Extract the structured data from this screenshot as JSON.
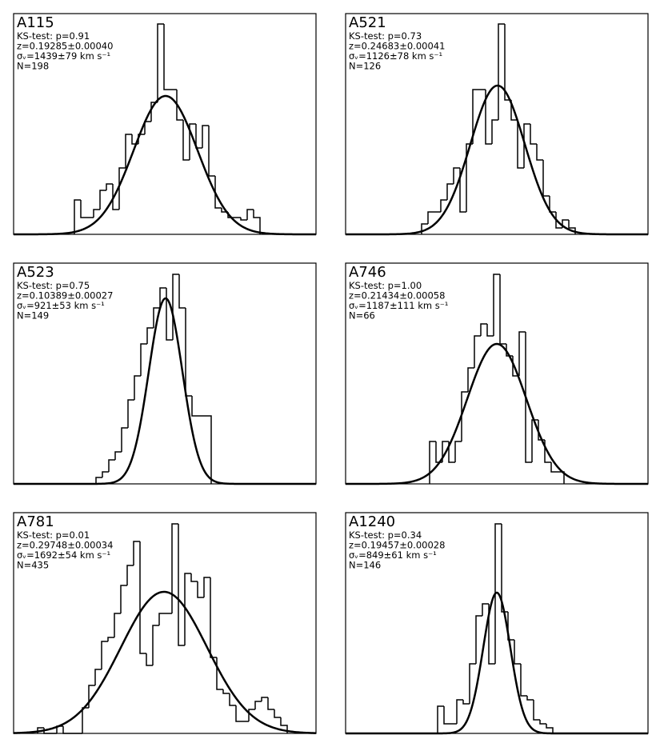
{
  "chart_data": [
    {
      "type": "histogram",
      "title": "A115",
      "annotations": [
        "KS-test: p=0.91",
        "z=0.19285±0.00040",
        "σᵥ=1439±79 km s⁻¹",
        "N=198"
      ],
      "bins": [
        76,
        84,
        92,
        100,
        108,
        116,
        124,
        132,
        140,
        148,
        156,
        164,
        172,
        180,
        188,
        196,
        204,
        212,
        220,
        228,
        236,
        244,
        252,
        260,
        268,
        276,
        284,
        292,
        300,
        308
      ],
      "values": [
        43,
        21,
        21,
        31,
        55,
        63,
        31,
        83,
        125,
        113,
        125,
        141,
        165,
        263,
        181,
        181,
        143,
        93,
        138,
        108,
        136,
        73,
        33,
        28,
        21,
        21,
        18,
        31,
        21
      ],
      "fit": {
        "mean": 190,
        "sigma": 40,
        "peak": 173
      },
      "color": "#000000",
      "xlim": [
        0,
        378
      ],
      "ylim": [
        0,
        276
      ]
    },
    {
      "type": "histogram",
      "title": "A521",
      "annotations": [
        "KS-test: p=0.73",
        "z=0.24683±0.00041",
        "σᵥ=1126±78 km s⁻¹",
        "N=126"
      ],
      "bins": [
        95,
        103,
        111,
        119,
        127,
        135,
        143,
        151,
        159,
        167,
        175,
        183,
        191,
        199,
        207,
        215,
        223,
        231,
        239,
        247,
        255,
        263,
        271,
        279,
        287
      ],
      "values": [
        13,
        28,
        28,
        43,
        63,
        83,
        28,
        113,
        181,
        181,
        113,
        143,
        263,
        168,
        143,
        83,
        138,
        113,
        93,
        48,
        28,
        8,
        18,
        8
      ],
      "fit": {
        "mean": 190,
        "sigma": 34,
        "peak": 186
      },
      "color": "#000000",
      "xlim": [
        0,
        378
      ],
      "ylim": [
        0,
        276
      ]
    },
    {
      "type": "histogram",
      "title": "A523",
      "annotations": [
        "KS-test: p=0.75",
        "z=0.10389±0.00027",
        "σᵥ=921±53 km s⁻¹",
        "N=149"
      ],
      "bins": [
        103,
        111,
        119,
        127,
        135,
        143,
        151,
        159,
        167,
        175,
        183,
        191,
        199,
        207,
        215,
        223,
        231,
        239,
        247
      ],
      "values": [
        8,
        15,
        30,
        40,
        70,
        105,
        135,
        175,
        195,
        220,
        245,
        180,
        262,
        220,
        110,
        85,
        85,
        85
      ],
      "fit": {
        "mean": 190,
        "sigma": 21,
        "peak": 232
      },
      "color": "#000000",
      "xlim": [
        0,
        378
      ],
      "ylim": [
        0,
        276
      ]
    },
    {
      "type": "histogram",
      "title": "A746",
      "annotations": [
        "KS-test: p=1.00",
        "z=0.21434±0.00058",
        "σᵥ=1187±111 km s⁻¹",
        "N=66"
      ],
      "bins": [
        105,
        113,
        121,
        129,
        137,
        145,
        153,
        161,
        169,
        177,
        185,
        193,
        201,
        209,
        217,
        225,
        233,
        241,
        249,
        257,
        265,
        273
      ],
      "values": [
        53,
        27,
        53,
        27,
        53,
        115,
        145,
        185,
        200,
        185,
        262,
        175,
        160,
        135,
        190,
        27,
        80,
        55,
        27,
        15,
        15
      ],
      "fit": {
        "mean": 189,
        "sigma": 37,
        "peak": 175
      },
      "color": "#000000",
      "xlim": [
        0,
        378
      ],
      "ylim": [
        0,
        276
      ]
    },
    {
      "type": "histogram",
      "title": "A781",
      "annotations": [
        "KS-test: p=0.01",
        "z=0.29748±0.00034",
        "σᵥ=1692±54 km s⁻¹",
        "N=435"
      ],
      "bins": [
        30,
        38,
        46,
        54,
        62,
        70,
        78,
        86,
        94,
        102,
        110,
        118,
        126,
        134,
        142,
        150,
        158,
        166,
        174,
        182,
        190,
        198,
        206,
        214,
        222,
        230,
        238,
        246,
        254,
        262,
        270,
        278,
        286,
        294,
        302,
        310,
        318,
        326,
        334,
        342
      ],
      "values": [
        7,
        0,
        0,
        9,
        0,
        0,
        0,
        32,
        60,
        80,
        115,
        120,
        150,
        185,
        210,
        240,
        100,
        85,
        135,
        150,
        150,
        262,
        110,
        200,
        190,
        170,
        195,
        95,
        55,
        50,
        35,
        15,
        15,
        30,
        40,
        45,
        30,
        20,
        10
      ],
      "fit": {
        "mean": 188,
        "sigma": 54,
        "peak": 177
      },
      "color": "#000000",
      "xlim": [
        0,
        378
      ],
      "ylim": [
        0,
        276
      ]
    },
    {
      "type": "histogram",
      "title": "A1240",
      "annotations": [
        "KS-test: p=0.34",
        "z=0.19457±0.00028",
        "σᵥ=849±61 km s⁻¹",
        "N=146"
      ],
      "bins": [
        115,
        123,
        131,
        139,
        147,
        155,
        163,
        171,
        179,
        187,
        195,
        203,
        211,
        219,
        227,
        235,
        243,
        251,
        259
      ],
      "values": [
        34,
        12,
        12,
        42,
        37,
        87,
        147,
        162,
        87,
        262,
        152,
        117,
        87,
        47,
        42,
        17,
        12,
        7
      ],
      "fit": {
        "mean": 189,
        "sigma": 17,
        "peak": 176
      },
      "color": "#000000",
      "xlim": [
        0,
        378
      ],
      "ylim": [
        0,
        276
      ]
    }
  ]
}
